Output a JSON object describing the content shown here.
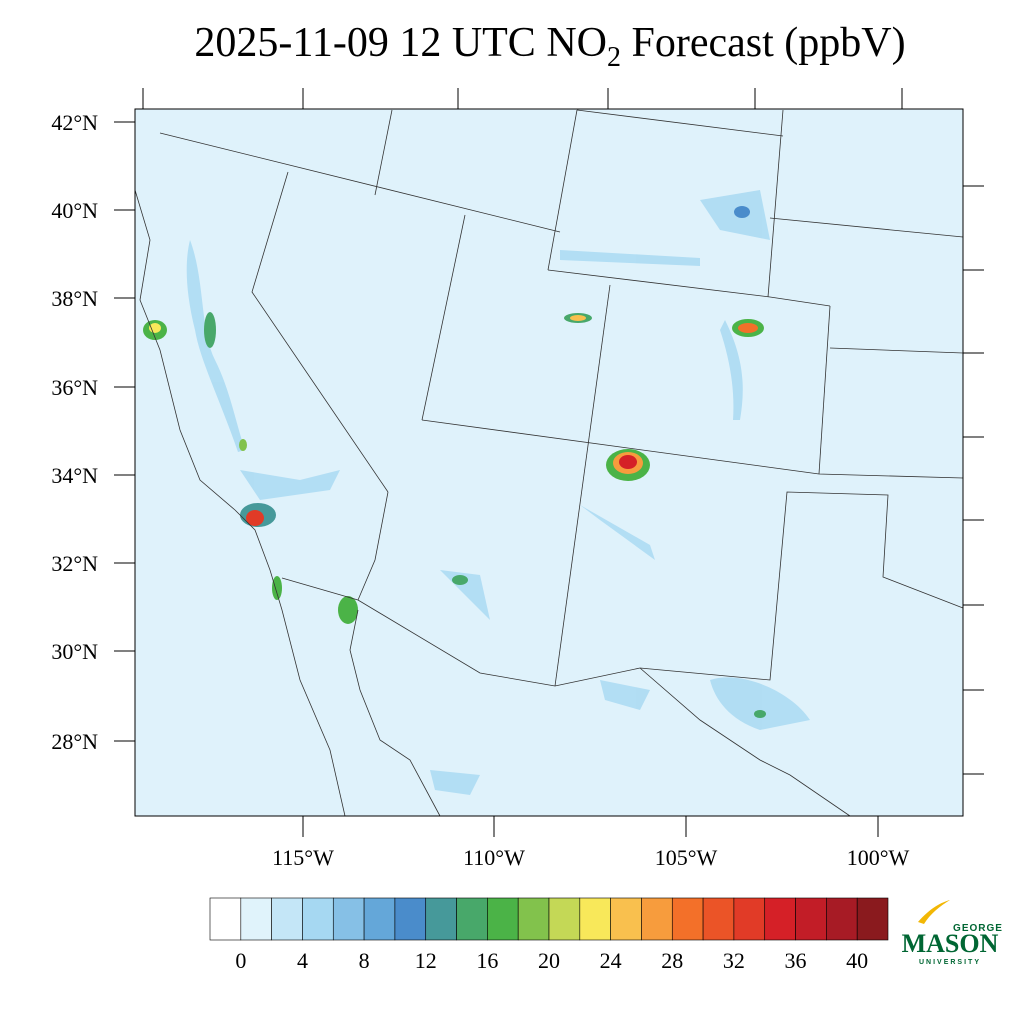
{
  "title": {
    "text": "2025-11-09 12 UTC NO",
    "subscript": "2",
    "suffix": " Forecast (ppbV)"
  },
  "map": {
    "lat_labels": [
      "42°N",
      "40°N",
      "38°N",
      "36°N",
      "34°N",
      "32°N",
      "30°N",
      "28°N"
    ],
    "lon_labels": [
      "115°W",
      "110°W",
      "105°W",
      "100°W"
    ]
  },
  "colorbar": {
    "colors": [
      "#ffffff",
      "#e0f3fb",
      "#c4e6f7",
      "#a6d8f2",
      "#86c0e6",
      "#64a7d9",
      "#4a8ccb",
      "#46999a",
      "#48a86a",
      "#4bb347",
      "#82c24c",
      "#c4d856",
      "#f8e85a",
      "#f9c04e",
      "#f79c3d",
      "#f37029",
      "#eb5427",
      "#e13b27",
      "#d52027",
      "#c21d27",
      "#a71b25",
      "#8a1a1e"
    ],
    "ticks": [
      0,
      4,
      8,
      12,
      16,
      20,
      24,
      28,
      32,
      36,
      40
    ]
  },
  "logo": {
    "top": "GEORGE",
    "name": "MASON",
    "bottom": "UNIVERSITY"
  }
}
